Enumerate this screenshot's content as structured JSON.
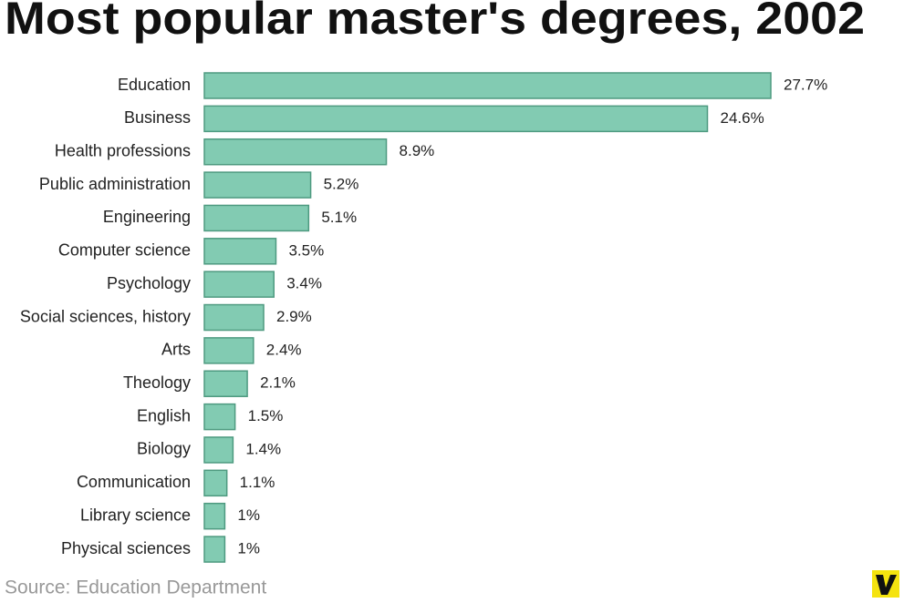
{
  "chart_data": {
    "type": "hbar",
    "title": "Most popular master's degrees, 2002",
    "categories": [
      "Education",
      "Business",
      "Health professions",
      "Public administration",
      "Engineering",
      "Computer science",
      "Psychology",
      "Social sciences, history",
      "Arts",
      "Theology",
      "English",
      "Biology",
      "Communication",
      "Library science",
      "Physical sciences"
    ],
    "values": [
      27.7,
      24.6,
      8.9,
      5.2,
      5.1,
      3.5,
      3.4,
      2.9,
      2.4,
      2.1,
      1.5,
      1.4,
      1.1,
      1,
      1
    ],
    "value_labels": [
      "27.7%",
      "24.6%",
      "8.9%",
      "5.2%",
      "5.1%",
      "3.5%",
      "3.4%",
      "2.9%",
      "2.4%",
      "2.1%",
      "1.5%",
      "1.4%",
      "1.1%",
      "1%",
      "1%"
    ],
    "color": "#82cbb2",
    "source": "Source: Education Department"
  }
}
